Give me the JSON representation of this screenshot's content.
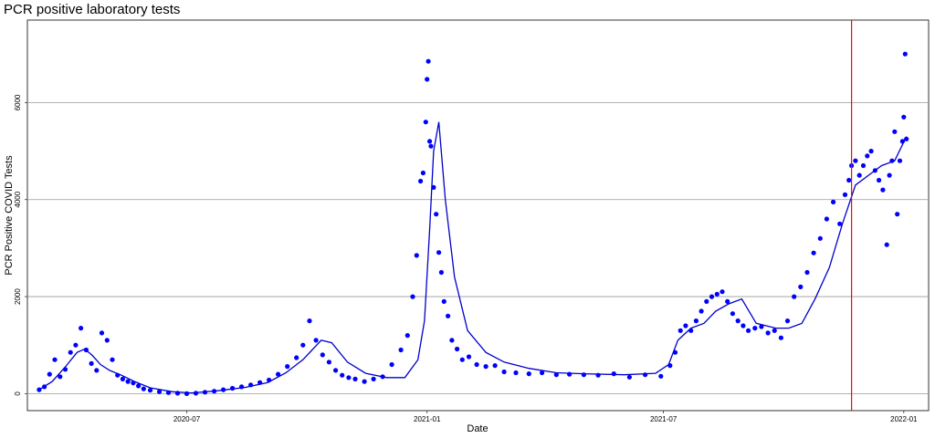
{
  "chart_data": {
    "type": "scatter",
    "title": "PCR positive laboratory tests",
    "xlabel": "Date",
    "ylabel": "PCR Positive COVID Tests",
    "x_ticks": [
      "2020-07",
      "2021-01",
      "2021-07",
      "2022-01"
    ],
    "y_ticks": [
      0,
      2000,
      4000,
      6000
    ],
    "xlim": [
      "2020-03-01",
      "2022-01-20"
    ],
    "ylim": [
      -350,
      7700
    ],
    "grid": true,
    "colors": {
      "points": "#0000ff",
      "trend_line": "#0000cc",
      "marker_line": "#ff0000",
      "grid": "#999999"
    },
    "vertical_marker_date": "2021-11-22",
    "series": [
      {
        "type": "points",
        "x": [
          "2020-03-10",
          "2020-03-14",
          "2020-03-18",
          "2020-03-22",
          "2020-03-26",
          "2020-03-30",
          "2020-04-03",
          "2020-04-07",
          "2020-04-11",
          "2020-04-15",
          "2020-04-19",
          "2020-04-23",
          "2020-04-27",
          "2020-05-01",
          "2020-05-05",
          "2020-05-09",
          "2020-05-13",
          "2020-05-17",
          "2020-05-21",
          "2020-05-25",
          "2020-05-29",
          "2020-06-03",
          "2020-06-10",
          "2020-06-17",
          "2020-06-24",
          "2020-07-01",
          "2020-07-08",
          "2020-07-15",
          "2020-07-22",
          "2020-07-29",
          "2020-08-05",
          "2020-08-12",
          "2020-08-19",
          "2020-08-26",
          "2020-09-02",
          "2020-09-09",
          "2020-09-16",
          "2020-09-23",
          "2020-09-28",
          "2020-10-03",
          "2020-10-08",
          "2020-10-13",
          "2020-10-18",
          "2020-10-23",
          "2020-10-28",
          "2020-11-02",
          "2020-11-07",
          "2020-11-14",
          "2020-11-21",
          "2020-11-28",
          "2020-12-05",
          "2020-12-12",
          "2020-12-17",
          "2020-12-21",
          "2020-12-24",
          "2020-12-27",
          "2020-12-29",
          "2020-12-31",
          "2021-01-01",
          "2021-01-02",
          "2021-01-03",
          "2021-01-04",
          "2021-01-06",
          "2021-01-08",
          "2021-01-10",
          "2021-01-12",
          "2021-01-14",
          "2021-01-17",
          "2021-01-20",
          "2021-01-24",
          "2021-01-28",
          "2021-02-02",
          "2021-02-08",
          "2021-02-15",
          "2021-02-22",
          "2021-03-01",
          "2021-03-10",
          "2021-03-20",
          "2021-03-30",
          "2021-04-10",
          "2021-04-20",
          "2021-05-01",
          "2021-05-12",
          "2021-05-24",
          "2021-06-05",
          "2021-06-17",
          "2021-06-29",
          "2021-07-06",
          "2021-07-10",
          "2021-07-14",
          "2021-07-18",
          "2021-07-22",
          "2021-07-26",
          "2021-07-30",
          "2021-08-03",
          "2021-08-07",
          "2021-08-11",
          "2021-08-15",
          "2021-08-19",
          "2021-08-23",
          "2021-08-27",
          "2021-08-31",
          "2021-09-04",
          "2021-09-09",
          "2021-09-14",
          "2021-09-19",
          "2021-09-24",
          "2021-09-29",
          "2021-10-04",
          "2021-10-09",
          "2021-10-14",
          "2021-10-19",
          "2021-10-24",
          "2021-10-29",
          "2021-11-03",
          "2021-11-08",
          "2021-11-13",
          "2021-11-17",
          "2021-11-20",
          "2021-11-22",
          "2021-11-25",
          "2021-11-28",
          "2021-12-01",
          "2021-12-04",
          "2021-12-07",
          "2021-12-10",
          "2021-12-13",
          "2021-12-16",
          "2021-12-19",
          "2021-12-21",
          "2021-12-23",
          "2021-12-25",
          "2021-12-27",
          "2021-12-29",
          "2021-12-31",
          "2022-01-01",
          "2022-01-02",
          "2022-01-03"
        ],
        "y": [
          80,
          140,
          400,
          700,
          350,
          500,
          850,
          1000,
          1350,
          900,
          620,
          480,
          1250,
          1100,
          700,
          380,
          300,
          250,
          220,
          160,
          100,
          70,
          40,
          20,
          10,
          0,
          10,
          30,
          50,
          80,
          110,
          140,
          180,
          230,
          280,
          400,
          560,
          740,
          1000,
          1500,
          1100,
          800,
          650,
          480,
          380,
          330,
          300,
          250,
          300,
          350,
          600,
          900,
          1200,
          2000,
          2850,
          4380,
          4550,
          5600,
          6480,
          6850,
          5200,
          5100,
          4250,
          3700,
          2910,
          2500,
          1900,
          1600,
          1100,
          920,
          700,
          760,
          600,
          560,
          580,
          450,
          430,
          410,
          430,
          390,
          400,
          390,
          380,
          410,
          340,
          390,
          360,
          580,
          850,
          1300,
          1400,
          1300,
          1500,
          1700,
          1900,
          2000,
          2050,
          2100,
          1900,
          1650,
          1500,
          1400,
          1300,
          1350,
          1380,
          1250,
          1300,
          1150,
          1500,
          2000,
          2200,
          2500,
          2900,
          3200,
          3600,
          3950,
          3500,
          4100,
          4400,
          4700,
          4800,
          4500,
          4700,
          4900,
          5000,
          4600,
          4400,
          4200,
          3070,
          4500,
          4800,
          5400,
          3700,
          4800,
          5200,
          5700,
          7000,
          5250
        ]
      },
      {
        "type": "smoothed_line",
        "x": [
          "2020-03-10",
          "2020-03-20",
          "2020-03-30",
          "2020-04-08",
          "2020-04-14",
          "2020-04-20",
          "2020-04-26",
          "2020-05-03",
          "2020-05-12",
          "2020-05-22",
          "2020-06-03",
          "2020-06-20",
          "2020-07-05",
          "2020-07-25",
          "2020-08-15",
          "2020-09-01",
          "2020-09-15",
          "2020-09-28",
          "2020-10-05",
          "2020-10-12",
          "2020-10-20",
          "2020-11-01",
          "2020-11-15",
          "2020-12-01",
          "2020-12-15",
          "2020-12-25",
          "2020-12-30",
          "2021-01-03",
          "2021-01-06",
          "2021-01-10",
          "2021-01-15",
          "2021-01-22",
          "2021-02-01",
          "2021-02-15",
          "2021-03-01",
          "2021-03-20",
          "2021-04-10",
          "2021-05-01",
          "2021-06-01",
          "2021-06-25",
          "2021-07-05",
          "2021-07-12",
          "2021-07-22",
          "2021-08-01",
          "2021-08-10",
          "2021-08-20",
          "2021-08-30",
          "2021-09-10",
          "2021-09-25",
          "2021-10-05",
          "2021-10-15",
          "2021-10-25",
          "2021-11-05",
          "2021-11-15",
          "2021-11-25",
          "2021-12-05",
          "2021-12-15",
          "2021-12-25",
          "2022-01-03"
        ],
        "y": [
          80,
          250,
          550,
          850,
          920,
          780,
          600,
          480,
          380,
          250,
          120,
          40,
          15,
          60,
          130,
          230,
          430,
          700,
          900,
          1100,
          1050,
          650,
          420,
          330,
          330,
          700,
          1500,
          3400,
          5000,
          5600,
          4000,
          2400,
          1300,
          850,
          650,
          520,
          430,
          410,
          390,
          420,
          600,
          1100,
          1350,
          1450,
          1700,
          1850,
          1950,
          1450,
          1350,
          1350,
          1450,
          1950,
          2600,
          3500,
          4300,
          4500,
          4700,
          4800,
          5300
        ]
      }
    ]
  }
}
